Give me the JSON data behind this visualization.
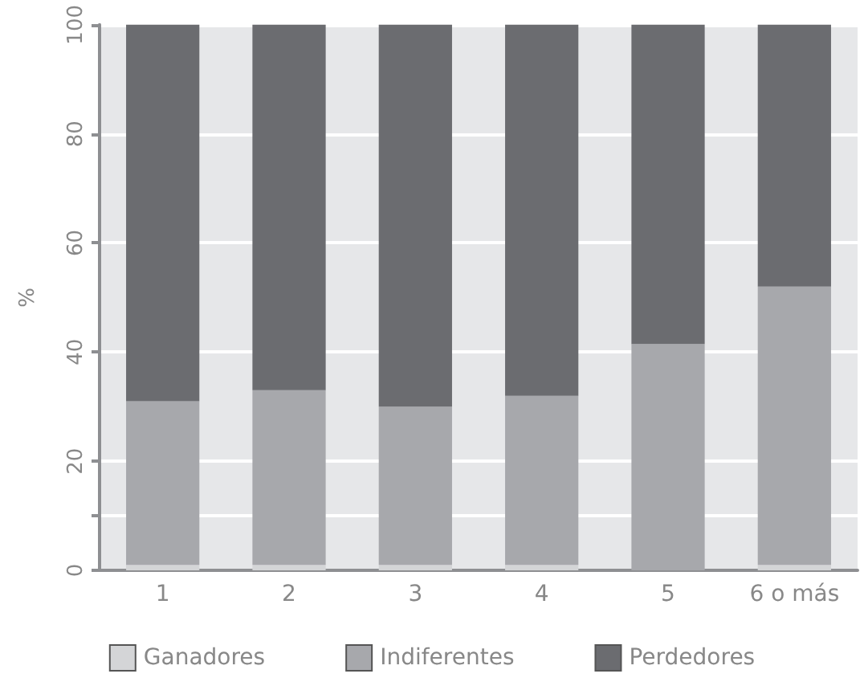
{
  "chart_data": {
    "type": "bar",
    "stacked": true,
    "ylabel": "%",
    "categories": [
      "1",
      "2",
      "3",
      "4",
      "5",
      "6 o más"
    ],
    "series": [
      {
        "name": "Ganadores",
        "color": "#d4d5d7",
        "values": [
          1,
          1,
          1,
          1,
          0,
          1
        ]
      },
      {
        "name": "Indiferentes",
        "color": "#a7a8ac",
        "values": [
          30,
          32,
          29,
          31,
          41.5,
          51
        ]
      },
      {
        "name": "Perdedores",
        "color": "#6b6c70",
        "values": [
          69,
          67,
          70,
          68,
          58.5,
          48
        ]
      }
    ],
    "ylim": [
      0,
      100
    ],
    "yticks": [
      0,
      {
        "value": 10,
        "label": null
      },
      20,
      40,
      60,
      80,
      100
    ],
    "grid": "y",
    "legend": "bottom"
  }
}
